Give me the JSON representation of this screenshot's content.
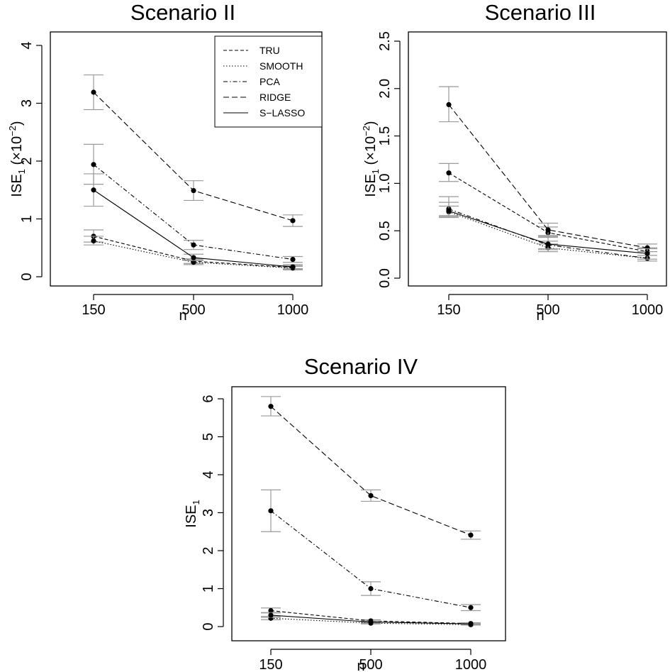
{
  "figure": {
    "colors": {
      "line": "#000000",
      "errorbar": "#9a9a9a",
      "frame": "#000000",
      "background": "#ffffff"
    },
    "legend": {
      "placement": "top-right of Scenario II panel",
      "entries": [
        {
          "label": "TRU",
          "linestyle": "dotted-dash-short"
        },
        {
          "label": "SMOOTH",
          "linestyle": "dotted"
        },
        {
          "label": "PCA",
          "linestyle": "dot-dash"
        },
        {
          "label": "RIDGE",
          "linestyle": "long-dash"
        },
        {
          "label": "S−LASSO",
          "linestyle": "solid"
        }
      ]
    }
  },
  "chart_data": [
    {
      "type": "line",
      "title": "Scenario II",
      "xlabel": "n",
      "ylabel": {
        "main": "ISE",
        "sub": "1",
        "suffix": " (×10",
        "sup": "−2",
        "close": ")"
      },
      "x": [
        "150",
        "500",
        "1000"
      ],
      "ylim": [
        0,
        4
      ],
      "yticks": [
        "0",
        "1",
        "2",
        "3",
        "4"
      ],
      "yticks_values": [
        0,
        1,
        2,
        3,
        4
      ],
      "grid": false,
      "series": [
        {
          "name": "TRU",
          "values": [
            0.7,
            0.27,
            0.16
          ],
          "err": [
            [
              0.6,
              0.81
            ],
            [
              0.23,
              0.31
            ],
            [
              0.13,
              0.19
            ]
          ]
        },
        {
          "name": "SMOOTH",
          "values": [
            0.62,
            0.25,
            0.15
          ],
          "err": [
            [
              0.55,
              0.7
            ],
            [
              0.21,
              0.29
            ],
            [
              0.12,
              0.18
            ]
          ]
        },
        {
          "name": "PCA",
          "values": [
            1.94,
            0.55,
            0.3
          ],
          "err": [
            [
              1.6,
              2.29
            ],
            [
              0.47,
              0.63
            ],
            [
              0.25,
              0.35
            ]
          ]
        },
        {
          "name": "RIDGE",
          "values": [
            3.19,
            1.49,
            0.97
          ],
          "err": [
            [
              2.89,
              3.49
            ],
            [
              1.32,
              1.66
            ],
            [
              0.87,
              1.07
            ]
          ]
        },
        {
          "name": "S−LASSO",
          "values": [
            1.5,
            0.33,
            0.17
          ],
          "err": [
            [
              1.22,
              1.78
            ],
            [
              0.28,
              0.39
            ],
            [
              0.14,
              0.21
            ]
          ]
        }
      ]
    },
    {
      "type": "line",
      "title": "Scenario III",
      "xlabel": "n",
      "ylabel": {
        "main": "ISE",
        "sub": "1",
        "suffix": " (×10",
        "sup": "−2",
        "close": ")"
      },
      "x": [
        "150",
        "500",
        "1000"
      ],
      "ylim": [
        0,
        2.5
      ],
      "yticks": [
        "0.0",
        "0.5",
        "1.0",
        "1.5",
        "2.0",
        "2.5"
      ],
      "yticks_values": [
        0,
        0.5,
        1.0,
        1.5,
        2.0,
        2.5
      ],
      "grid": false,
      "series": [
        {
          "name": "TRU",
          "values": [
            1.11,
            0.48,
            0.28
          ],
          "err": [
            [
              1.02,
              1.21
            ],
            [
              0.43,
              0.54
            ],
            [
              0.24,
              0.32
            ]
          ]
        },
        {
          "name": "SMOOTH",
          "values": [
            0.7,
            0.32,
            0.21
          ],
          "err": [
            [
              0.64,
              0.76
            ],
            [
              0.28,
              0.36
            ],
            [
              0.18,
              0.24
            ]
          ]
        },
        {
          "name": "PCA",
          "values": [
            0.73,
            0.35,
            0.21
          ],
          "err": [
            [
              0.66,
              0.8
            ],
            [
              0.31,
              0.39
            ],
            [
              0.18,
              0.24
            ]
          ]
        },
        {
          "name": "RIDGE",
          "values": [
            1.83,
            0.51,
            0.32
          ],
          "err": [
            [
              1.65,
              2.02
            ],
            [
              0.45,
              0.58
            ],
            [
              0.28,
              0.36
            ]
          ]
        },
        {
          "name": "S−LASSO",
          "values": [
            0.71,
            0.36,
            0.26
          ],
          "err": [
            [
              0.65,
              0.86
            ],
            [
              0.3,
              0.44
            ],
            [
              0.2,
              0.31
            ]
          ]
        }
      ]
    },
    {
      "type": "line",
      "title": "Scenario IV",
      "xlabel": "n",
      "ylabel": {
        "main": "ISE",
        "sub": "1",
        "suffix": "",
        "sup": "",
        "close": ""
      },
      "x": [
        "150",
        "500",
        "1000"
      ],
      "ylim": [
        0,
        6
      ],
      "yticks": [
        "0",
        "1",
        "2",
        "3",
        "4",
        "5",
        "6"
      ],
      "yticks_values": [
        0,
        1,
        2,
        3,
        4,
        5,
        6
      ],
      "grid": false,
      "series": [
        {
          "name": "TRU",
          "values": [
            0.42,
            0.15,
            0.08
          ],
          "err": [
            [
              0.36,
              0.49
            ],
            [
              0.12,
              0.18
            ],
            [
              0.06,
              0.1
            ]
          ]
        },
        {
          "name": "SMOOTH",
          "values": [
            0.22,
            0.09,
            0.05
          ],
          "err": [
            [
              0.18,
              0.27
            ],
            [
              0.07,
              0.11
            ],
            [
              0.04,
              0.07
            ]
          ]
        },
        {
          "name": "PCA",
          "values": [
            3.05,
            1.0,
            0.5
          ],
          "err": [
            [
              2.5,
              3.6
            ],
            [
              0.82,
              1.18
            ],
            [
              0.42,
              0.58
            ]
          ]
        },
        {
          "name": "RIDGE",
          "values": [
            5.8,
            3.45,
            2.41
          ],
          "err": [
            [
              5.55,
              6.06
            ],
            [
              3.3,
              3.6
            ],
            [
              2.3,
              2.52
            ]
          ]
        },
        {
          "name": "S−LASSO",
          "values": [
            0.3,
            0.12,
            0.07
          ],
          "err": [
            [
              0.24,
              0.37
            ],
            [
              0.09,
              0.15
            ],
            [
              0.05,
              0.09
            ]
          ]
        }
      ]
    }
  ]
}
